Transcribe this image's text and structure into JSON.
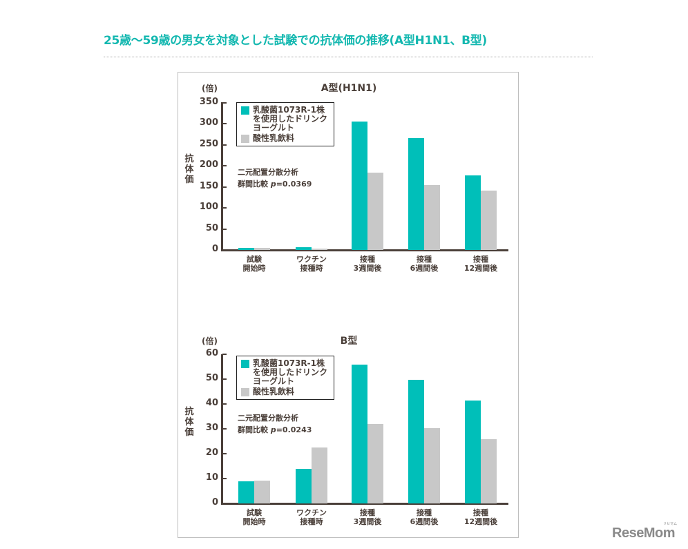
{
  "page": {
    "title": "25歳〜59歳の男女を対象とした試験での抗体価の推移(A型H1N1、B型)",
    "logo": "ReseMom",
    "logo_sub": "リセマム"
  },
  "colors": {
    "title": "#14b8b0",
    "series_yogurt": "#00bfb9",
    "series_control": "#c8c8c8",
    "axis": "#4a3f39"
  },
  "charts": [
    {
      "title": "A型(H1N1)",
      "unit": "(倍)",
      "ylabel": "抗体価",
      "yticks": [
        "350",
        "300",
        "250",
        "200",
        "150",
        "100",
        "50",
        "0"
      ],
      "legend": [
        {
          "label": "乳酸菌1073R-1株を使用したドリンクヨーグルト"
        },
        {
          "label": "酸性乳飲料"
        }
      ],
      "stat_line1": "二元配置分散分析",
      "stat_prefix": "群間比較 ",
      "stat_p": "p",
      "stat_value": "=0.0369",
      "xlabels": [
        {
          "l1": "試験",
          "l2": "開始時"
        },
        {
          "l1": "ワクチン",
          "l2": "接種時"
        },
        {
          "l1": "接種",
          "l2": "3週間後"
        },
        {
          "l1": "接種",
          "l2": "6週間後"
        },
        {
          "l1": "接種",
          "l2": "12週間後"
        }
      ]
    },
    {
      "title": "B型",
      "unit": "(倍)",
      "ylabel": "抗体価",
      "yticks": [
        "60",
        "50",
        "40",
        "30",
        "20",
        "10",
        "0"
      ],
      "legend": [
        {
          "label": "乳酸菌1073R-1株を使用したドリンクヨーグルト"
        },
        {
          "label": "酸性乳飲料"
        }
      ],
      "stat_line1": "二元配置分散分析",
      "stat_prefix": "群間比較 ",
      "stat_p": "p",
      "stat_value": "=0.0243",
      "xlabels": [
        {
          "l1": "試験",
          "l2": "開始時"
        },
        {
          "l1": "ワクチン",
          "l2": "接種時"
        },
        {
          "l1": "接種",
          "l2": "3週間後"
        },
        {
          "l1": "接種",
          "l2": "6週間後"
        },
        {
          "l1": "接種",
          "l2": "12週間後"
        }
      ]
    }
  ],
  "chart_data": [
    {
      "type": "bar",
      "title": "A型(H1N1)",
      "xlabel": "",
      "ylabel": "抗体価 (倍)",
      "ylim": [
        0,
        350
      ],
      "yticks": [
        0,
        50,
        100,
        150,
        200,
        250,
        300,
        350
      ],
      "grid": false,
      "legend_position": "upper left",
      "categories": [
        "試験開始時",
        "ワクチン接種時",
        "接種3週間後",
        "接種6週間後",
        "接種12週間後"
      ],
      "series": [
        {
          "name": "乳酸菌1073R-1株を使用したドリンクヨーグルト",
          "color": "#00bfb9",
          "values": [
            5,
            7,
            306,
            266,
            177
          ]
        },
        {
          "name": "酸性乳飲料",
          "color": "#c8c8c8",
          "values": [
            5,
            3,
            184,
            154,
            141
          ]
        }
      ],
      "annotations": [
        "二元配置分散分析",
        "群間比較 p=0.0369"
      ]
    },
    {
      "type": "bar",
      "title": "B型",
      "xlabel": "",
      "ylabel": "抗体価 (倍)",
      "ylim": [
        0,
        60
      ],
      "yticks": [
        0,
        10,
        20,
        30,
        40,
        50,
        60
      ],
      "grid": false,
      "legend_position": "upper left",
      "categories": [
        "試験開始時",
        "ワクチン接種時",
        "接種3週間後",
        "接種6週間後",
        "接種12週間後"
      ],
      "series": [
        {
          "name": "乳酸菌1073R-1株を使用したドリンクヨーグルト",
          "color": "#00bfb9",
          "values": [
            8.9,
            14.0,
            55.8,
            49.8,
            41.4
          ]
        },
        {
          "name": "酸性乳飲料",
          "color": "#c8c8c8",
          "values": [
            9.3,
            22.6,
            31.9,
            30.2,
            25.7
          ]
        }
      ],
      "annotations": [
        "二元配置分散分析",
        "群間比較 p=0.0243"
      ]
    }
  ]
}
